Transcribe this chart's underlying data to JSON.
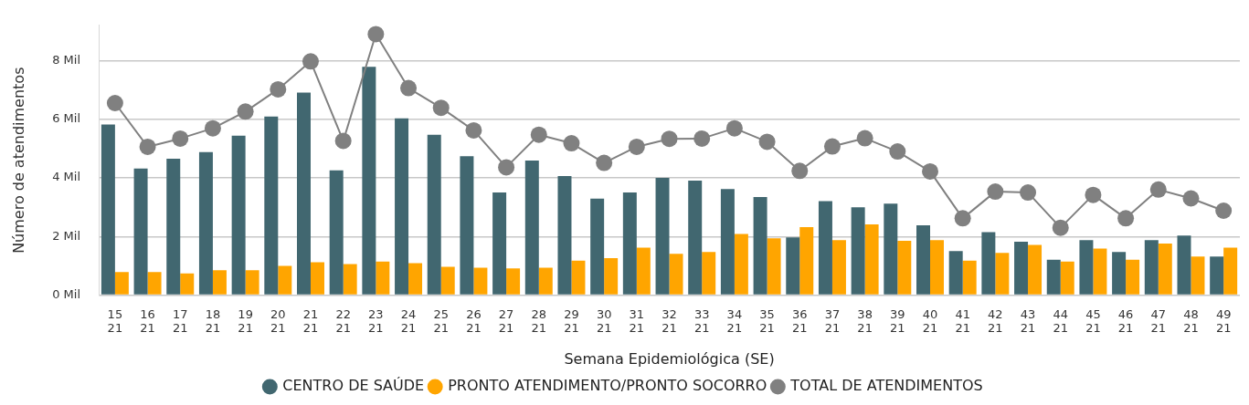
{
  "chart_data": {
    "type": "bar",
    "xlabel": "Semana Epidemiológica (SE)",
    "ylabel": "Número de atendimentos",
    "categories": [
      "15\n21",
      "16\n21",
      "17\n21",
      "18\n21",
      "19\n21",
      "20\n21",
      "21\n21",
      "22\n21",
      "23\n21",
      "24\n21",
      "25\n21",
      "26\n21",
      "27\n21",
      "28\n21",
      "29\n21",
      "30\n21",
      "31\n21",
      "32\n21",
      "33\n21",
      "34\n21",
      "35\n21",
      "36\n21",
      "37\n21",
      "38\n21",
      "39\n21",
      "40\n21",
      "41\n21",
      "42\n21",
      "43\n21",
      "44\n21",
      "45\n21",
      "46\n21",
      "47\n21",
      "48\n21",
      "49\n21"
    ],
    "series": [
      {
        "name": "CENTRO DE SAÚDE",
        "color": "#416770",
        "values": [
          5.82,
          4.32,
          4.65,
          4.88,
          5.44,
          6.09,
          6.91,
          4.26,
          7.79,
          6.03,
          5.47,
          4.74,
          3.5,
          4.59,
          4.06,
          3.29,
          3.5,
          4.0,
          3.91,
          3.62,
          3.35,
          1.97,
          3.21,
          3.0,
          3.12,
          2.38,
          1.5,
          2.15,
          1.82,
          1.21,
          1.88,
          1.47,
          1.88,
          2.03,
          1.32
        ]
      },
      {
        "name": "PRONTO ATENDIMENTO/PRONTO SOCORRO",
        "color": "#ffa500",
        "values": [
          0.79,
          0.79,
          0.74,
          0.85,
          0.85,
          1.0,
          1.12,
          1.06,
          1.15,
          1.09,
          0.97,
          0.94,
          0.91,
          0.94,
          1.18,
          1.26,
          1.62,
          1.41,
          1.47,
          2.09,
          1.94,
          2.32,
          1.88,
          2.41,
          1.85,
          1.88,
          1.18,
          1.44,
          1.71,
          1.15,
          1.59,
          1.21,
          1.76,
          1.32,
          1.62
        ]
      },
      {
        "name": "TOTAL DE ATENDIMENTOS",
        "type": "line",
        "color": "#808080",
        "values": [
          6.55,
          5.06,
          5.34,
          5.69,
          6.26,
          7.02,
          7.97,
          5.26,
          8.9,
          7.06,
          6.39,
          5.62,
          4.36,
          5.47,
          5.18,
          4.51,
          5.06,
          5.33,
          5.34,
          5.69,
          5.23,
          4.24,
          5.07,
          5.35,
          4.9,
          4.22,
          2.62,
          3.53,
          3.5,
          2.3,
          3.42,
          2.62,
          3.6,
          3.3,
          2.88
        ]
      }
    ],
    "ylim": [
      0,
      9.2
    ],
    "yticks": [
      {
        "value": 0,
        "label": "0 Mil"
      },
      {
        "value": 2,
        "label": "2 Mil"
      },
      {
        "value": 4,
        "label": "4 Mil"
      },
      {
        "value": 6,
        "label": "6 Mil"
      },
      {
        "value": 8,
        "label": "8 Mil"
      }
    ],
    "grid": "y",
    "legend": "bottom",
    "marker": "circle",
    "line_style": "solid"
  }
}
